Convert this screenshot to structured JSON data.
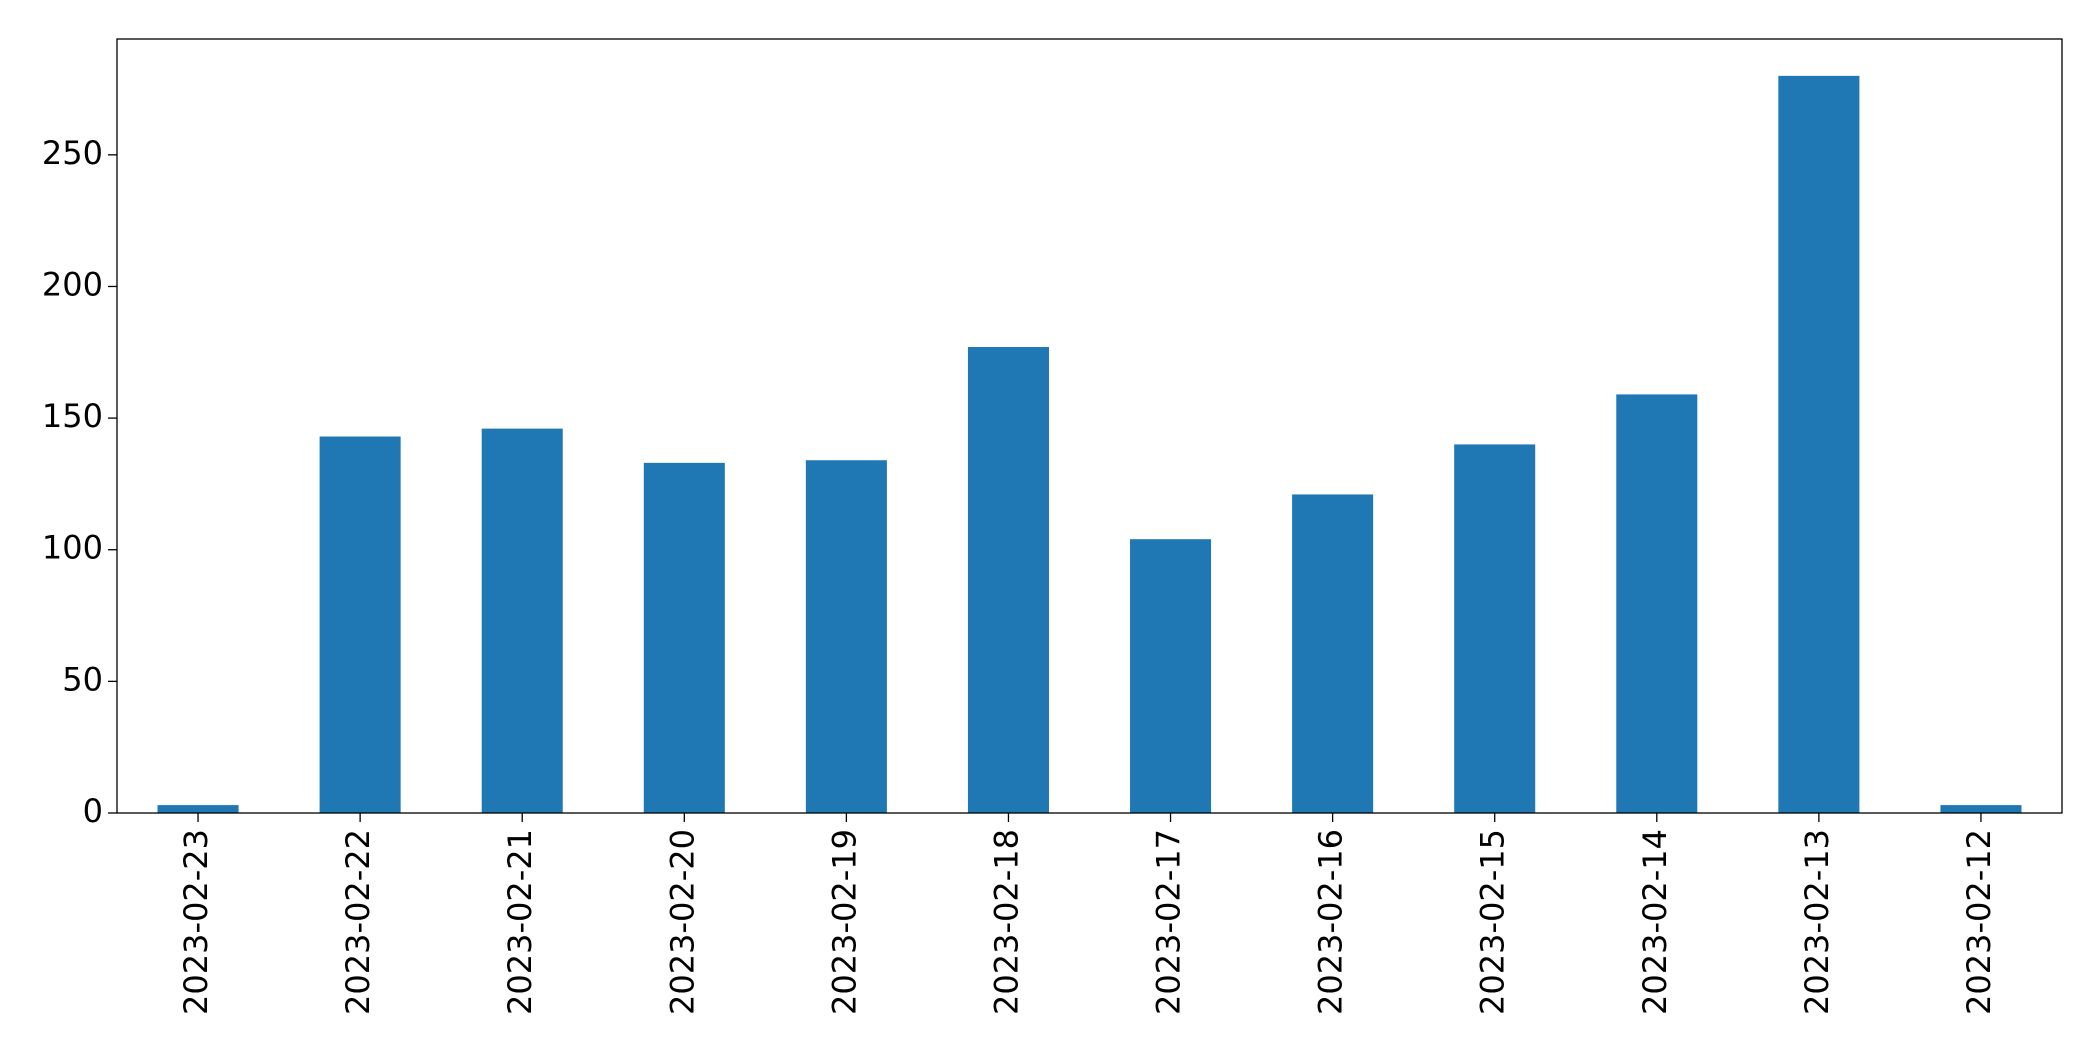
{
  "chart_data": {
    "type": "bar",
    "categories": [
      "2023-02-23",
      "2023-02-22",
      "2023-02-21",
      "2023-02-20",
      "2023-02-19",
      "2023-02-18",
      "2023-02-17",
      "2023-02-16",
      "2023-02-15",
      "2023-02-14",
      "2023-02-13",
      "2023-02-12"
    ],
    "values": [
      3,
      143,
      146,
      133,
      134,
      177,
      104,
      121,
      140,
      159,
      280,
      3
    ],
    "color": "#1f77b4",
    "ylim": [
      0,
      294
    ],
    "yticks": [
      0,
      50,
      100,
      150,
      200,
      250
    ],
    "grid": false
  }
}
